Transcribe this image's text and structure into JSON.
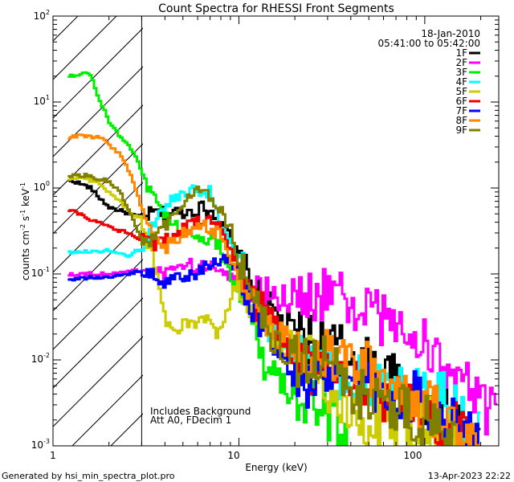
{
  "chart_data": {
    "type": "line",
    "title": "Count Spectra for RHESSI Front Segments",
    "xlabel": "Energy (keV)",
    "ylabel_parts": {
      "base": "counts cm",
      "exp1": "-2",
      "mid": " s",
      "exp2": "-1",
      "unit": " keV",
      "exp3": "-1"
    },
    "x_scale": "log",
    "y_scale": "log",
    "xlim": [
      1,
      250
    ],
    "ylim": [
      0.001,
      100
    ],
    "x_ticks": [
      {
        "v": 1,
        "label": "1"
      },
      {
        "v": 10,
        "label": "10"
      },
      {
        "v": 100,
        "label": "100"
      }
    ],
    "y_ticks": [
      {
        "v": 0.001,
        "base": "10",
        "exp": "-3"
      },
      {
        "v": 0.01,
        "base": "10",
        "exp": "-2"
      },
      {
        "v": 0.1,
        "base": "10",
        "exp": "-1"
      },
      {
        "v": 1,
        "base": "10",
        "exp": "0"
      },
      {
        "v": 10,
        "base": "10",
        "exp": "1"
      },
      {
        "v": 100,
        "base": "10",
        "exp": "2"
      }
    ],
    "hatched_region_max_energy": 3,
    "date": "18-Jan-2010",
    "time_range": "05:41:00 to 05:42:00",
    "annotation_lines": [
      "Includes Background",
      "Att A0, FDecim 1"
    ],
    "series": [
      {
        "name": "1F",
        "color": "#000000",
        "shape": [
          [
            1.2,
            1.2
          ],
          [
            1.3,
            1.2
          ],
          [
            1.6,
            1.0
          ],
          [
            1.7,
            0.85
          ],
          [
            2.0,
            0.6
          ],
          [
            2.6,
            0.5
          ],
          [
            3.0,
            0.45
          ],
          [
            3.5,
            0.52
          ],
          [
            4.0,
            0.5
          ],
          [
            5.0,
            0.53
          ],
          [
            5.8,
            0.55
          ],
          [
            6.2,
            0.6
          ],
          [
            7.0,
            0.55
          ],
          [
            8.0,
            0.45
          ],
          [
            9.0,
            0.25
          ],
          [
            10.0,
            0.15
          ],
          [
            11.0,
            0.1
          ],
          [
            13.0,
            0.05
          ],
          [
            20.0,
            0.02
          ],
          [
            40.0,
            0.012
          ],
          [
            80.0,
            0.0045
          ],
          [
            200.0,
            0.0012
          ]
        ]
      },
      {
        "name": "2F",
        "color": "#ff00ff",
        "shape": [
          [
            1.2,
            0.1
          ],
          [
            1.5,
            0.1
          ],
          [
            2.0,
            0.1
          ],
          [
            3.0,
            0.11
          ],
          [
            3.5,
            0.1
          ],
          [
            4.0,
            0.1
          ],
          [
            5.0,
            0.13
          ],
          [
            6.0,
            0.12
          ],
          [
            7.0,
            0.12
          ],
          [
            8.0,
            0.12
          ],
          [
            9.0,
            0.1
          ],
          [
            10.0,
            0.08
          ],
          [
            11.0,
            0.06
          ],
          [
            13.0,
            0.06
          ],
          [
            20.0,
            0.055
          ],
          [
            30.0,
            0.06
          ],
          [
            40.0,
            0.045
          ],
          [
            60.0,
            0.03
          ],
          [
            100.0,
            0.015
          ],
          [
            150.0,
            0.006
          ],
          [
            200.0,
            0.003
          ],
          [
            250.0,
            0.002
          ]
        ]
      },
      {
        "name": "3F",
        "color": "#00ee00",
        "shape": [
          [
            1.2,
            20.0
          ],
          [
            1.4,
            20.0
          ],
          [
            1.5,
            22.0
          ],
          [
            1.6,
            20.0
          ],
          [
            1.8,
            10.0
          ],
          [
            2.0,
            6.0
          ],
          [
            2.3,
            4.0
          ],
          [
            2.6,
            3.0
          ],
          [
            2.9,
            2.0
          ],
          [
            3.2,
            1.0
          ],
          [
            3.5,
            0.8
          ],
          [
            4.0,
            0.5
          ],
          [
            5.0,
            0.3
          ],
          [
            6.0,
            0.28
          ],
          [
            7.0,
            0.25
          ],
          [
            8.0,
            0.2
          ],
          [
            9.0,
            0.1
          ],
          [
            10.0,
            0.06
          ],
          [
            12.0,
            0.03
          ],
          [
            14.0,
            0.008
          ],
          [
            20.0,
            0.004
          ],
          [
            30.0,
            0.0025
          ],
          [
            40.0,
            0.001
          ]
        ]
      },
      {
        "name": "4F",
        "color": "#00ffff",
        "shape": [
          [
            1.2,
            0.18
          ],
          [
            1.5,
            0.18
          ],
          [
            2.0,
            0.19
          ],
          [
            2.5,
            0.16
          ],
          [
            3.0,
            0.2
          ],
          [
            4.0,
            0.6
          ],
          [
            5.0,
            0.85
          ],
          [
            6.0,
            0.92
          ],
          [
            7.0,
            0.9
          ],
          [
            7.5,
            0.6
          ],
          [
            8.0,
            0.4
          ],
          [
            9.0,
            0.25
          ],
          [
            10.0,
            0.15
          ],
          [
            12.0,
            0.06
          ],
          [
            15.0,
            0.02
          ],
          [
            20.0,
            0.01
          ],
          [
            40.0,
            0.006
          ],
          [
            80.0,
            0.004
          ],
          [
            120.0,
            0.004
          ],
          [
            200.0,
            0.0015
          ]
        ]
      },
      {
        "name": "5F",
        "color": "#cccc00",
        "shape": [
          [
            1.2,
            1.3
          ],
          [
            1.5,
            1.3
          ],
          [
            1.8,
            1.1
          ],
          [
            2.0,
            0.9
          ],
          [
            2.3,
            0.7
          ],
          [
            2.6,
            0.5
          ],
          [
            3.0,
            0.45
          ],
          [
            3.2,
            0.25
          ],
          [
            3.5,
            0.15
          ],
          [
            3.8,
            0.06
          ],
          [
            4.0,
            0.03
          ],
          [
            4.5,
            0.02
          ],
          [
            5.0,
            0.025
          ],
          [
            6.0,
            0.028
          ],
          [
            7.0,
            0.03
          ],
          [
            7.5,
            0.02
          ],
          [
            8.0,
            0.025
          ],
          [
            9.0,
            0.05
          ],
          [
            10.0,
            0.08
          ],
          [
            12.0,
            0.04
          ],
          [
            15.0,
            0.02
          ],
          [
            25.0,
            0.01
          ],
          [
            40.0,
            0.002
          ],
          [
            60.0,
            0.002
          ],
          [
            100.0,
            0.002
          ],
          [
            150.0,
            0.001
          ]
        ]
      },
      {
        "name": "6F",
        "color": "#ee0000",
        "shape": [
          [
            1.2,
            0.55
          ],
          [
            1.3,
            0.55
          ],
          [
            1.5,
            0.45
          ],
          [
            1.8,
            0.4
          ],
          [
            2.0,
            0.35
          ],
          [
            2.5,
            0.3
          ],
          [
            3.0,
            0.25
          ],
          [
            3.5,
            0.22
          ],
          [
            4.0,
            0.25
          ],
          [
            5.0,
            0.35
          ],
          [
            6.0,
            0.4
          ],
          [
            7.0,
            0.42
          ],
          [
            8.0,
            0.35
          ],
          [
            9.0,
            0.2
          ],
          [
            10.0,
            0.12
          ],
          [
            12.0,
            0.05
          ],
          [
            15.0,
            0.03
          ],
          [
            20.0,
            0.01
          ],
          [
            40.0,
            0.005
          ],
          [
            80.0,
            0.003
          ],
          [
            150.0,
            0.0015
          ],
          [
            200.0,
            0.001
          ]
        ]
      },
      {
        "name": "7F",
        "color": "#0000ff",
        "shape": [
          [
            1.2,
            0.085
          ],
          [
            1.3,
            0.085
          ],
          [
            1.5,
            0.09
          ],
          [
            2.0,
            0.09
          ],
          [
            2.5,
            0.1
          ],
          [
            3.0,
            0.11
          ],
          [
            3.5,
            0.1
          ],
          [
            4.0,
            0.08
          ],
          [
            4.5,
            0.085
          ],
          [
            5.0,
            0.09
          ],
          [
            6.0,
            0.1
          ],
          [
            7.0,
            0.13
          ],
          [
            8.0,
            0.14
          ],
          [
            8.5,
            0.16
          ],
          [
            9.0,
            0.13
          ],
          [
            10.0,
            0.1
          ],
          [
            12.0,
            0.04
          ],
          [
            15.0,
            0.015
          ],
          [
            20.0,
            0.006
          ],
          [
            30.0,
            0.005
          ],
          [
            40.0,
            0.006
          ],
          [
            60.0,
            0.004
          ],
          [
            80.0,
            0.004
          ],
          [
            150.0,
            0.002
          ],
          [
            200.0,
            0.0012
          ]
        ]
      },
      {
        "name": "8F",
        "color": "#ff8800",
        "shape": [
          [
            1.2,
            3.5
          ],
          [
            1.3,
            4.0
          ],
          [
            1.5,
            4.0
          ],
          [
            1.8,
            3.8
          ],
          [
            2.0,
            3.2
          ],
          [
            2.3,
            2.5
          ],
          [
            2.6,
            1.5
          ],
          [
            3.0,
            0.6
          ],
          [
            3.5,
            0.3
          ],
          [
            4.0,
            0.2
          ],
          [
            5.0,
            0.3
          ],
          [
            6.0,
            0.35
          ],
          [
            7.0,
            0.35
          ],
          [
            8.0,
            0.28
          ],
          [
            9.0,
            0.15
          ],
          [
            10.0,
            0.1
          ],
          [
            12.0,
            0.05
          ],
          [
            15.0,
            0.02
          ],
          [
            25.0,
            0.012
          ],
          [
            50.0,
            0.008
          ],
          [
            100.0,
            0.003
          ],
          [
            200.0,
            0.0012
          ]
        ]
      },
      {
        "name": "9F",
        "color": "#808000",
        "shape": [
          [
            1.2,
            1.4
          ],
          [
            1.5,
            1.4
          ],
          [
            2.0,
            1.2
          ],
          [
            2.3,
            0.9
          ],
          [
            2.6,
            0.5
          ],
          [
            3.0,
            0.25
          ],
          [
            3.5,
            0.25
          ],
          [
            4.0,
            0.35
          ],
          [
            5.0,
            0.7
          ],
          [
            6.0,
            0.9
          ],
          [
            7.0,
            0.85
          ],
          [
            8.0,
            0.55
          ],
          [
            9.0,
            0.35
          ],
          [
            10.0,
            0.15
          ],
          [
            12.0,
            0.05
          ],
          [
            15.0,
            0.02
          ],
          [
            20.0,
            0.01
          ],
          [
            30.0,
            0.01
          ],
          [
            40.0,
            0.005
          ],
          [
            60.0,
            0.003
          ],
          [
            100.0,
            0.002
          ],
          [
            150.0,
            0.001
          ]
        ]
      }
    ]
  },
  "footer": {
    "left": "Generated by hsi_min_spectra_plot.pro",
    "right": "13-Apr-2023 22:22"
  }
}
